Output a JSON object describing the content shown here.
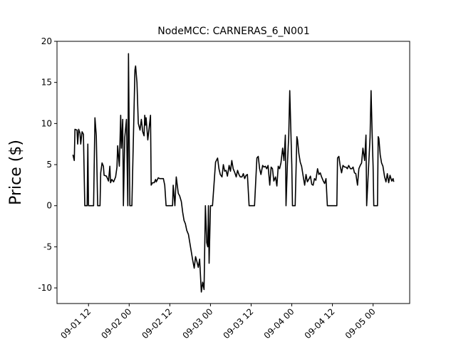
{
  "chart_data": {
    "type": "line",
    "title": "NodeMCC: CARNERAS_6_N001",
    "y_label": "Price ($)",
    "x": [
      7.4,
      7.8,
      8.0,
      8.6,
      8.8,
      9.1,
      9.5,
      9.7,
      10.1,
      10.5,
      10.9,
      11.6,
      11.8,
      12.0,
      13.5,
      13.9,
      14.3,
      14.7,
      15.4,
      15.6,
      16.0,
      16.4,
      16.6,
      17.3,
      17.9,
      18.3,
      18.5,
      18.9,
      19.4,
      20.0,
      20.4,
      20.6,
      21.1,
      21.5,
      21.7,
      22.1,
      22.3,
      22.7,
      23.2,
      23.6,
      23.8,
      24.2,
      24.8,
      25.7,
      25.9,
      26.3,
      26.7,
      27.2,
      27.6,
      28.0,
      28.4,
      28.6,
      28.8,
      29.0,
      29.5,
      29.9,
      30.3,
      30.5,
      30.9,
      31.4,
      31.8,
      32.0,
      32.6,
      33.0,
      34.1,
      34.5,
      34.9,
      36.8,
      37.0,
      37.5,
      37.9,
      38.5,
      38.9,
      39.4,
      39.8,
      40.2,
      40.6,
      41.0,
      41.5,
      41.9,
      42.3,
      42.7,
      43.2,
      43.6,
      44.0,
      44.4,
      44.8,
      45.3,
      45.7,
      46.1,
      46.5,
      46.9,
      47.2,
      47.4,
      47.6,
      48.0,
      48.6,
      49.5,
      50.1,
      50.5,
      50.9,
      51.4,
      51.8,
      52.2,
      52.6,
      53.0,
      53.5,
      53.9,
      54.3,
      54.7,
      55.2,
      55.6,
      56.0,
      56.4,
      56.8,
      57.3,
      57.7,
      58.1,
      58.5,
      58.9,
      59.4,
      61.0,
      61.7,
      62.1,
      62.5,
      62.9,
      63.4,
      63.8,
      64.2,
      64.6,
      65.0,
      65.5,
      65.9,
      66.3,
      66.7,
      67.2,
      67.6,
      68.0,
      68.4,
      68.8,
      69.3,
      69.7,
      70.1,
      70.3,
      70.7,
      71.1,
      71.4,
      71.8,
      72.0,
      72.2,
      73.0,
      73.5,
      73.7,
      74.1,
      74.5,
      74.9,
      75.4,
      75.8,
      76.2,
      76.6,
      77.0,
      77.5,
      77.9,
      78.3,
      78.7,
      79.1,
      79.6,
      80.0,
      80.4,
      80.8,
      81.3,
      81.7,
      82.1,
      82.5,
      85.3,
      85.5,
      85.9,
      86.3,
      86.7,
      87.1,
      87.6,
      88.0,
      88.4,
      88.8,
      89.3,
      89.7,
      90.1,
      90.5,
      90.9,
      91.4,
      91.8,
      92.2,
      92.6,
      93.0,
      93.5,
      93.9,
      94.1,
      94.7,
      95.1,
      95.4,
      95.8,
      96.0,
      96.2,
      97.3,
      97.5,
      97.7,
      98.1,
      98.5,
      98.9,
      99.4,
      99.8,
      100.2,
      100.6,
      101.0,
      101.5,
      101.9,
      102.1
    ],
    "series": [
      {
        "color": "#000000",
        "values": [
          6.2,
          5.5,
          9.3,
          9.2,
          7.5,
          9.3,
          8.8,
          7.5,
          9,
          8.7,
          0,
          0,
          7.5,
          0,
          0,
          10.7,
          8.5,
          0,
          0,
          4,
          5.2,
          4.8,
          3.7,
          3.6,
          3,
          4.8,
          2.8,
          3.2,
          2.9,
          3.5,
          4.7,
          7.3,
          4.8,
          11,
          7,
          10.5,
          0,
          8.3,
          10.5,
          0,
          18.5,
          0,
          0,
          16.5,
          17,
          15,
          10,
          9.2,
          10.5,
          9,
          8.5,
          11,
          9.8,
          10.7,
          8,
          9.5,
          11,
          2.5,
          2.8,
          2.8,
          3.2,
          2.9,
          3.4,
          3.3,
          3.3,
          2.5,
          0,
          0,
          2.5,
          0,
          3.5,
          1.5,
          1.2,
          0.5,
          -0.8,
          -1.8,
          -2.2,
          -3,
          -3.5,
          -4.5,
          -5.5,
          -6.5,
          -7.6,
          -6.2,
          -6.8,
          -7.5,
          -6.5,
          -10.5,
          -9.3,
          -10.2,
          0,
          -4.5,
          -5,
          0,
          -7,
          0,
          0,
          5.3,
          5.8,
          4.5,
          3.8,
          3.5,
          5,
          4.2,
          4.3,
          3.6,
          4.9,
          4.2,
          5.5,
          4.5,
          4,
          3.5,
          4.3,
          3.8,
          3.5,
          3.5,
          3.9,
          3.3,
          3.7,
          3.8,
          0,
          0,
          5.8,
          6,
          4.5,
          3.8,
          4.9,
          4.7,
          4.8,
          4.5,
          4.9,
          2.5,
          4.7,
          4.5,
          3,
          3.5,
          2.4,
          4.8,
          4.5,
          5.2,
          7,
          5.5,
          8.6,
          0,
          5,
          8.5,
          14,
          8,
          5,
          0,
          0,
          8.4,
          8,
          6.3,
          5.3,
          4.8,
          3.5,
          2.5,
          3.8,
          2.9,
          3.2,
          3.6,
          2.6,
          2.5,
          3.3,
          3.1,
          4.5,
          3.8,
          4,
          3.5,
          3,
          2.7,
          3.3,
          0,
          0,
          5.8,
          6,
          4.8,
          4,
          4.9,
          4.7,
          4.7,
          4.5,
          4.9,
          4.5,
          4.5,
          4.7,
          4,
          3.9,
          2.5,
          4.5,
          4.9,
          5.2,
          7,
          5.5,
          8.6,
          0,
          5,
          8.3,
          14,
          7.5,
          4.8,
          0,
          0,
          8.4,
          8.2,
          6.2,
          5.2,
          4.8,
          3.5,
          2.9,
          3.9,
          2.8,
          3.7,
          3,
          3.3,
          2.9
        ]
      }
    ],
    "xlim": [
      2.7,
      106.8
    ],
    "xticks": [
      {
        "value": 12,
        "label": "09-01 12"
      },
      {
        "value": 24,
        "label": "09-02 00"
      },
      {
        "value": 36,
        "label": "09-02 12"
      },
      {
        "value": 48,
        "label": "09-03 00"
      },
      {
        "value": 60,
        "label": "09-03 12"
      },
      {
        "value": 72,
        "label": "09-04 00"
      },
      {
        "value": 84,
        "label": "09-04 12"
      },
      {
        "value": 96,
        "label": "09-05 00"
      }
    ],
    "ylim": [
      -11.9,
      20
    ],
    "yticks": [
      -10,
      -5,
      0,
      5,
      10,
      15,
      20
    ],
    "grid": false
  }
}
